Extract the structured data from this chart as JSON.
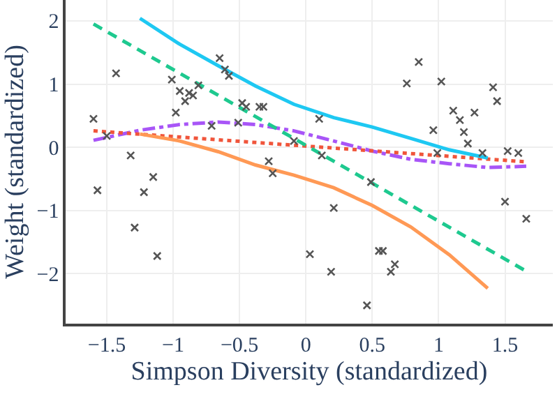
{
  "chart_data": {
    "type": "scatter",
    "xlabel": "Simpson Diversity (standardized)",
    "ylabel": "Weight (standardized)",
    "xlim": [
      -1.81,
      1.86
    ],
    "ylim": [
      -2.79,
      2.33
    ],
    "xticks": [
      -1.5,
      -1,
      -0.5,
      0,
      0.5,
      1,
      1.5
    ],
    "yticks": [
      -2,
      -1,
      0,
      1,
      2
    ],
    "grid": true,
    "series": [
      {
        "color": "#555555",
        "marker": "cross",
        "x": [
          -1.6,
          -1.43,
          -1.57,
          -1.5,
          -1.32,
          -1.29,
          -1.22,
          -1.15,
          -1.12,
          -1.01,
          -0.98,
          -0.95,
          -0.91,
          -0.88,
          -0.85,
          -0.81,
          -0.71,
          -0.65,
          -0.61,
          -0.58,
          -0.51,
          -0.48,
          -0.45,
          -0.35,
          -0.32,
          -0.28,
          -0.25,
          -0.09,
          0.03,
          0.1,
          0.12,
          0.19,
          0.21,
          0.46,
          0.49,
          0.55,
          0.58,
          0.64,
          0.67,
          0.76,
          0.85,
          0.96,
          0.99,
          1.02,
          1.11,
          1.16,
          1.19,
          1.22,
          1.27,
          1.33,
          1.41,
          1.44,
          1.5,
          1.52,
          1.6,
          1.66
        ],
        "values": [
          0.45,
          1.17,
          -0.68,
          0.18,
          -0.13,
          -1.27,
          -0.71,
          -0.47,
          -1.72,
          1.07,
          0.55,
          0.89,
          0.73,
          0.86,
          0.82,
          0.98,
          0.34,
          1.41,
          1.23,
          1.13,
          0.39,
          0.7,
          0.64,
          0.64,
          0.64,
          -0.22,
          -0.41,
          0.1,
          -1.69,
          0.45,
          -0.13,
          -1.97,
          -0.96,
          -2.5,
          -0.55,
          -1.64,
          -1.64,
          -1.97,
          -1.85,
          1.01,
          1.35,
          0.27,
          -0.09,
          1.04,
          0.58,
          0.43,
          0.24,
          0.06,
          0.55,
          -0.09,
          0.95,
          0.73,
          -0.86,
          -0.06,
          -0.09,
          -1.13
        ]
      },
      {
        "type": "line",
        "color": "#1ec8f2",
        "line_style": "solid",
        "marker": "none",
        "x": [
          -1.25,
          -0.95,
          -0.66,
          -0.38,
          -0.09,
          0.21,
          0.5,
          0.79,
          1.08,
          1.37
        ],
        "values": [
          2.04,
          1.63,
          1.29,
          0.97,
          0.68,
          0.47,
          0.32,
          0.14,
          -0.04,
          -0.17
        ]
      },
      {
        "type": "line",
        "color": "#ff9955",
        "line_style": "solid",
        "marker": "none",
        "x": [
          -1.25,
          -0.95,
          -0.66,
          -0.38,
          -0.09,
          0.21,
          0.5,
          0.79,
          1.08,
          1.37
        ],
        "values": [
          0.21,
          0.1,
          -0.07,
          -0.28,
          -0.44,
          -0.64,
          -0.92,
          -1.26,
          -1.7,
          -2.23
        ]
      },
      {
        "type": "line",
        "color": "#1ec98f",
        "line_style": "dashed",
        "marker": "none",
        "x": [
          -1.6,
          1.66
        ],
        "values": [
          1.95,
          -1.96
        ]
      },
      {
        "type": "line",
        "color": "#f0553b",
        "line_style": "dotted",
        "marker": "none",
        "x": [
          -1.6,
          1.66
        ],
        "values": [
          0.26,
          -0.23
        ]
      },
      {
        "type": "line",
        "color": "#a855f7",
        "line_style": "dashdot",
        "marker": "none",
        "x": [
          -1.6,
          -1.25,
          -0.95,
          -0.66,
          -0.38,
          -0.09,
          0.21,
          0.5,
          0.79,
          1.08,
          1.37,
          1.66
        ],
        "values": [
          0.11,
          0.27,
          0.36,
          0.4,
          0.36,
          0.26,
          0.1,
          -0.06,
          -0.19,
          -0.26,
          -0.32,
          -0.3
        ]
      }
    ]
  }
}
